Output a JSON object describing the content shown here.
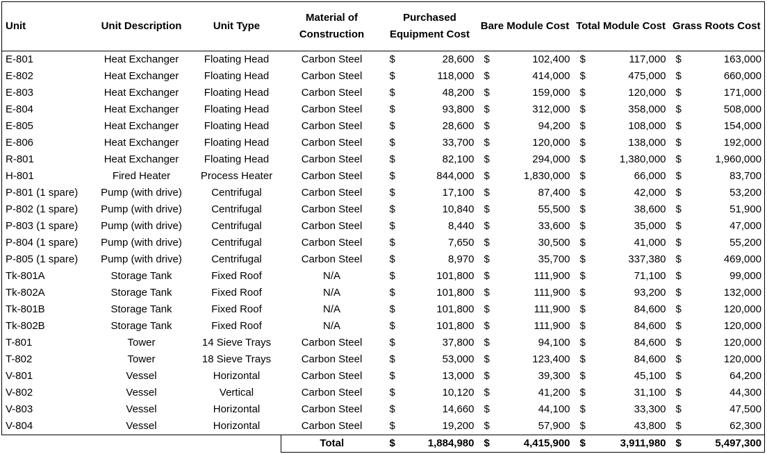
{
  "headers": {
    "unit": "Unit",
    "description": "Unit Description",
    "type": "Unit Type",
    "material": "Material of Construction",
    "purchased": "Purchased Equipment Cost",
    "bare": "Bare Module Cost",
    "total_module": "Total Module Cost",
    "grass_roots": "Grass Roots Cost"
  },
  "currency_symbol": "$",
  "rows": [
    {
      "unit": "E-801",
      "desc": "Heat Exchanger",
      "type": "Floating Head",
      "mat": "Carbon Steel",
      "pec": "28,600",
      "bmc": "102,400",
      "tmc": "117,000",
      "grc": "163,000"
    },
    {
      "unit": "E-802",
      "desc": "Heat Exchanger",
      "type": "Floating Head",
      "mat": "Carbon Steel",
      "pec": "118,000",
      "bmc": "414,000",
      "tmc": "475,000",
      "grc": "660,000"
    },
    {
      "unit": "E-803",
      "desc": "Heat Exchanger",
      "type": "Floating Head",
      "mat": "Carbon Steel",
      "pec": "48,200",
      "bmc": "159,000",
      "tmc": "120,000",
      "grc": "171,000"
    },
    {
      "unit": "E-804",
      "desc": "Heat Exchanger",
      "type": "Floating Head",
      "mat": "Carbon Steel",
      "pec": "93,800",
      "bmc": "312,000",
      "tmc": "358,000",
      "grc": "508,000"
    },
    {
      "unit": "E-805",
      "desc": "Heat Exchanger",
      "type": "Floating Head",
      "mat": "Carbon Steel",
      "pec": "28,600",
      "bmc": "94,200",
      "tmc": "108,000",
      "grc": "154,000"
    },
    {
      "unit": "E-806",
      "desc": "Heat Exchanger",
      "type": "Floating Head",
      "mat": "Carbon Steel",
      "pec": "33,700",
      "bmc": "120,000",
      "tmc": "138,000",
      "grc": "192,000"
    },
    {
      "unit": "R-801",
      "desc": "Heat Exchanger",
      "type": "Floating Head",
      "mat": "Carbon Steel",
      "pec": "82,100",
      "bmc": "294,000",
      "tmc": "1,380,000",
      "grc": "1,960,000"
    },
    {
      "unit": "H-801",
      "desc": "Fired Heater",
      "type": "Process Heater",
      "mat": "Carbon Steel",
      "pec": "844,000",
      "bmc": "1,830,000",
      "tmc": "66,000",
      "grc": "83,700"
    },
    {
      "unit": "P-801 (1 spare)",
      "desc": "Pump (with drive)",
      "type": "Centrifugal",
      "mat": "Carbon Steel",
      "pec": "17,100",
      "bmc": "87,400",
      "tmc": "42,000",
      "grc": "53,200"
    },
    {
      "unit": "P-802 (1 spare)",
      "desc": "Pump (with drive)",
      "type": "Centrifugal",
      "mat": "Carbon Steel",
      "pec": "10,840",
      "bmc": "55,500",
      "tmc": "38,600",
      "grc": "51,900"
    },
    {
      "unit": "P-803 (1 spare)",
      "desc": "Pump (with drive)",
      "type": "Centrifugal",
      "mat": "Carbon Steel",
      "pec": "8,440",
      "bmc": "33,600",
      "tmc": "35,000",
      "grc": "47,000"
    },
    {
      "unit": "P-804 (1 spare)",
      "desc": "Pump (with drive)",
      "type": "Centrifugal",
      "mat": "Carbon Steel",
      "pec": "7,650",
      "bmc": "30,500",
      "tmc": "41,000",
      "grc": "55,200"
    },
    {
      "unit": "P-805 (1 spare)",
      "desc": "Pump (with drive)",
      "type": "Centrifugal",
      "mat": "Carbon Steel",
      "pec": "8,970",
      "bmc": "35,700",
      "tmc": "337,380",
      "grc": "469,000"
    },
    {
      "unit": "Tk-801A",
      "desc": "Storage Tank",
      "type": "Fixed Roof",
      "mat": "N/A",
      "pec": "101,800",
      "bmc": "111,900",
      "tmc": "71,100",
      "grc": "99,000"
    },
    {
      "unit": "Tk-802A",
      "desc": "Storage Tank",
      "type": "Fixed Roof",
      "mat": "N/A",
      "pec": "101,800",
      "bmc": "111,900",
      "tmc": "93,200",
      "grc": "132,000"
    },
    {
      "unit": "Tk-801B",
      "desc": "Storage Tank",
      "type": "Fixed Roof",
      "mat": "N/A",
      "pec": "101,800",
      "bmc": "111,900",
      "tmc": "84,600",
      "grc": "120,000"
    },
    {
      "unit": "Tk-802B",
      "desc": "Storage Tank",
      "type": "Fixed Roof",
      "mat": "N/A",
      "pec": "101,800",
      "bmc": "111,900",
      "tmc": "84,600",
      "grc": "120,000"
    },
    {
      "unit": "T-801",
      "desc": "Tower",
      "type": "14 Sieve Trays",
      "mat": "Carbon Steel",
      "pec": "37,800",
      "bmc": "94,100",
      "tmc": "84,600",
      "grc": "120,000"
    },
    {
      "unit": "T-802",
      "desc": "Tower",
      "type": "18 Sieve Trays",
      "mat": "Carbon Steel",
      "pec": "53,000",
      "bmc": "123,400",
      "tmc": "84,600",
      "grc": "120,000"
    },
    {
      "unit": "V-801",
      "desc": "Vessel",
      "type": "Horizontal",
      "mat": "Carbon Steel",
      "pec": "13,000",
      "bmc": "39,300",
      "tmc": "45,100",
      "grc": "64,200"
    },
    {
      "unit": "V-802",
      "desc": "Vessel",
      "type": "Vertical",
      "mat": "Carbon Steel",
      "pec": "10,120",
      "bmc": "41,200",
      "tmc": "31,100",
      "grc": "44,300"
    },
    {
      "unit": "V-803",
      "desc": "Vessel",
      "type": "Horizontal",
      "mat": "Carbon Steel",
      "pec": "14,660",
      "bmc": "44,100",
      "tmc": "33,300",
      "grc": "47,500"
    },
    {
      "unit": "V-804",
      "desc": "Vessel",
      "type": "Horizontal",
      "mat": "Carbon Steel",
      "pec": "19,200",
      "bmc": "57,900",
      "tmc": "43,800",
      "grc": "62,300"
    }
  ],
  "totals": {
    "label": "Total",
    "pec": "1,884,980",
    "bmc": "4,415,900",
    "tmc": "3,911,980",
    "grc": "5,497,300"
  }
}
